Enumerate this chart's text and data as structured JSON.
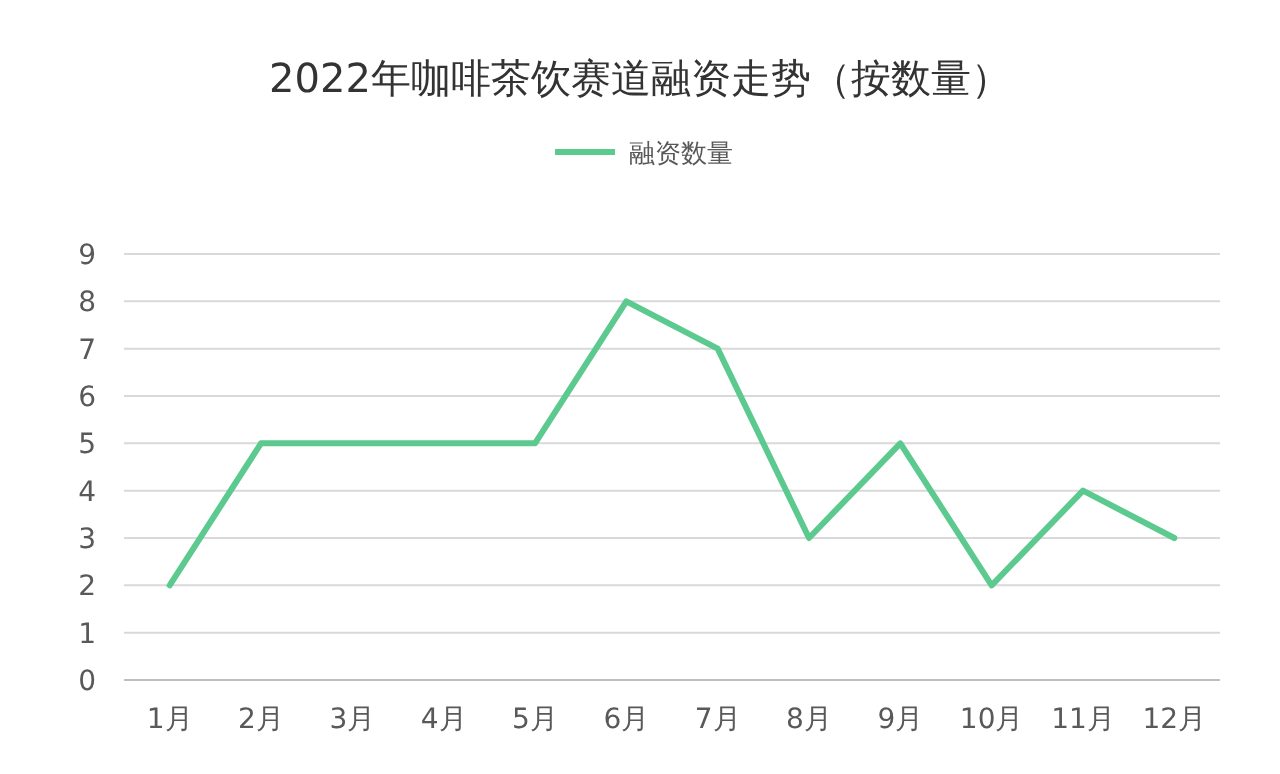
{
  "chart_data": {
    "type": "line",
    "title": "2022年咖啡茶饮赛道融资走势（按数量）",
    "categories": [
      "1月",
      "2月",
      "3月",
      "4月",
      "5月",
      "6月",
      "7月",
      "8月",
      "9月",
      "10月",
      "11月",
      "12月"
    ],
    "series": [
      {
        "name": "融资数量",
        "color": "#5cc98f",
        "values": [
          2,
          5,
          5,
          5,
          5,
          8,
          7,
          3,
          5,
          2,
          4,
          3
        ]
      }
    ],
    "ylim": [
      0,
      9
    ],
    "yticks": [
      0,
      1,
      2,
      3,
      4,
      5,
      6,
      7,
      8,
      9
    ],
    "grid": "y",
    "legend": "top"
  }
}
